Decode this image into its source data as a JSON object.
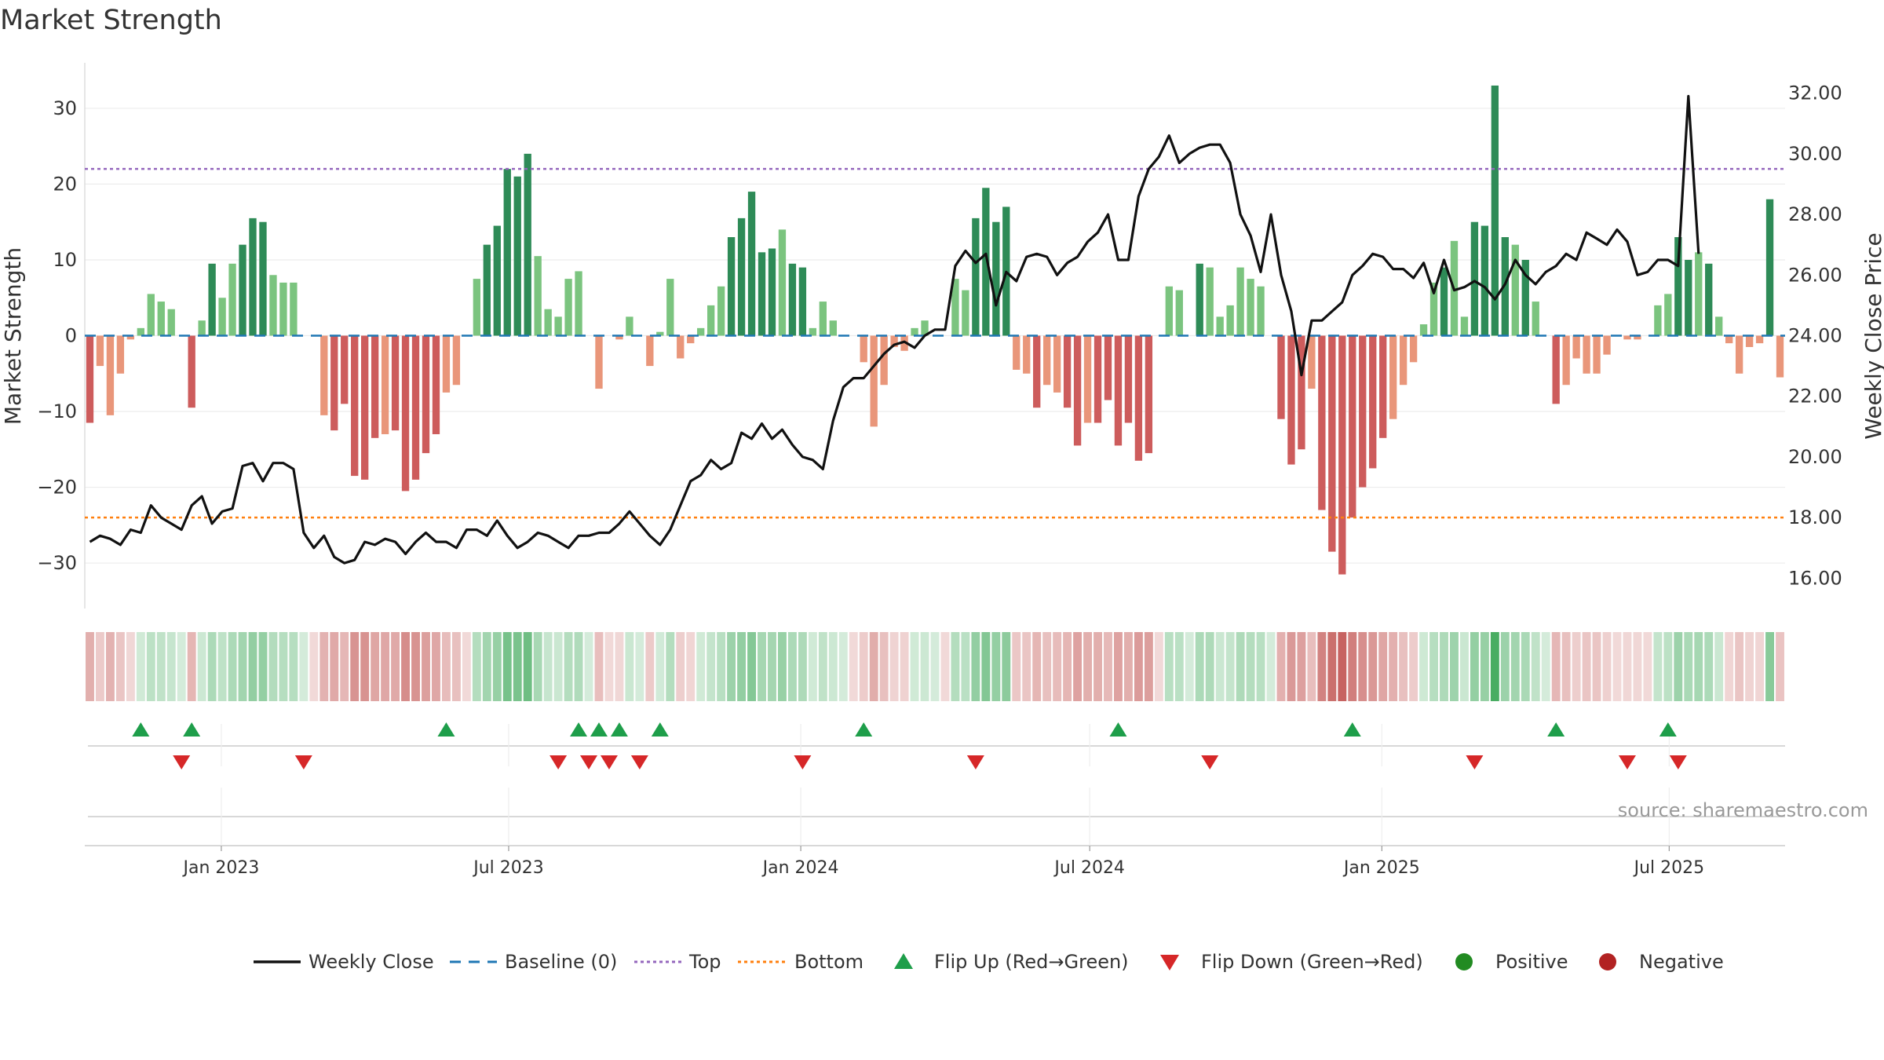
{
  "chart_data": {
    "type": "bar",
    "title": "Market Strength",
    "ylabel": "Market Strength",
    "y2label": "Weekly Close Price",
    "ylim": [
      -36,
      36
    ],
    "y2lim": [
      15.0,
      33.0
    ],
    "yticks": [
      30,
      20,
      10,
      0,
      -10,
      -20,
      -30
    ],
    "ytick_labels": [
      "30",
      "20",
      "10",
      "0",
      "−10",
      "−20",
      "−30"
    ],
    "y2ticks": [
      32,
      30,
      28,
      26,
      24,
      22,
      20,
      18,
      16
    ],
    "y2tick_labels": [
      "32.00",
      "30.00",
      "28.00",
      "26.00",
      "24.00",
      "22.00",
      "20.00",
      "18.00",
      "16.00"
    ],
    "x_range": [
      "2022-10-07",
      "2025-09-12"
    ],
    "xticks": [
      "2023-01-01",
      "2023-07-01",
      "2024-01-01",
      "2024-07-01",
      "2025-01-01",
      "2025-07-01"
    ],
    "xtick_labels": [
      "Jan 2023",
      "Jul 2023",
      "Jan 2024",
      "Jul 2024",
      "Jan 2025",
      "Jul 2025"
    ],
    "top_line": 22,
    "bottom_line": -24,
    "grid": true,
    "legend_position": "bottom",
    "source": "source: sharemaestro.com",
    "colors": {
      "positive": "#2e8b57",
      "positive_light": "#7bc47f",
      "negative": "#cd5c5c",
      "negative_light": "#e9967a",
      "close_line": "#111111",
      "baseline": "#1f77b4",
      "top": "#9467bd",
      "bottom": "#ff7f0e",
      "flip_up": "#1e9e4a",
      "flip_down": "#d62728",
      "legend_positive": "#228b22",
      "legend_negative": "#b22222"
    },
    "strength": [
      -11.5,
      -4.0,
      -10.5,
      -5.0,
      -0.5,
      1.0,
      5.5,
      4.5,
      3.5,
      0,
      -9.5,
      2.0,
      9.5,
      5.0,
      9.5,
      12.0,
      15.5,
      15.0,
      8.0,
      7.0,
      7.0,
      0,
      0,
      -10.5,
      -12.5,
      -9.0,
      -18.5,
      -19.0,
      -13.5,
      -13.0,
      -12.5,
      -20.5,
      -19.0,
      -15.5,
      -13.0,
      -7.5,
      -6.5,
      0,
      7.5,
      12.0,
      14.5,
      22.0,
      21.0,
      24.0,
      10.5,
      3.5,
      2.5,
      7.5,
      8.5,
      0,
      -7.0,
      0,
      -0.5,
      2.5,
      0,
      -4.0,
      0.5,
      7.5,
      -3.0,
      -1.0,
      1.0,
      4.0,
      6.5,
      13.0,
      15.5,
      19.0,
      11.0,
      11.5,
      14.0,
      9.5,
      9.0,
      1.0,
      4.5,
      2.0,
      0,
      0,
      -3.5,
      -12.0,
      -6.5,
      -1.5,
      -2.0,
      1.0,
      2.0,
      0,
      0,
      7.5,
      6.0,
      15.5,
      19.5,
      15.0,
      17.0,
      -4.5,
      -5.0,
      -9.5,
      -6.5,
      -7.5,
      -9.5,
      -14.5,
      -11.5,
      -11.5,
      -8.5,
      -14.5,
      -11.5,
      -16.5,
      -15.5,
      0,
      6.5,
      6.0,
      0,
      9.5,
      9.0,
      2.5,
      4.0,
      9.0,
      7.5,
      6.5,
      0,
      -11.0,
      -17.0,
      -15.0,
      -7.0,
      -23.0,
      -28.5,
      -31.5,
      -24.0,
      -20.0,
      -17.5,
      -13.5,
      -11.0,
      -6.5,
      -3.5,
      1.5,
      7.0,
      9.0,
      12.5,
      2.5,
      15.0,
      14.5,
      33.0,
      13.0,
      12.0,
      10.0,
      4.5,
      0,
      -9.0,
      -6.5,
      -3.0,
      -5.0,
      -5.0,
      -2.5,
      0,
      -0.5,
      -0.5,
      0,
      4.0,
      5.5,
      13.0,
      10.0,
      11.0,
      9.5,
      2.5,
      -1.0,
      -5.0,
      -1.5,
      -1.0,
      18.0,
      -5.5
    ],
    "close": [
      17.2,
      17.4,
      17.3,
      17.1,
      17.6,
      17.5,
      18.4,
      18.0,
      17.8,
      17.6,
      18.4,
      18.7,
      17.8,
      18.2,
      18.3,
      19.7,
      19.8,
      19.2,
      19.8,
      19.8,
      19.6,
      17.5,
      17.0,
      17.4,
      16.7,
      16.5,
      16.6,
      17.2,
      17.1,
      17.3,
      17.2,
      16.8,
      17.2,
      17.5,
      17.2,
      17.2,
      17.0,
      17.6,
      17.6,
      17.4,
      17.9,
      17.4,
      17.0,
      17.2,
      17.5,
      17.4,
      17.2,
      17.0,
      17.4,
      17.4,
      17.5,
      17.5,
      17.8,
      18.2,
      17.8,
      17.4,
      17.1,
      17.6,
      18.4,
      19.2,
      19.4,
      19.9,
      19.6,
      19.8,
      20.8,
      20.6,
      21.1,
      20.6,
      20.9,
      20.4,
      20.0,
      19.9,
      19.6,
      21.2,
      22.3,
      22.6,
      22.6,
      23.0,
      23.4,
      23.7,
      23.8,
      23.6,
      24.0,
      24.2,
      24.2,
      26.3,
      26.8,
      26.4,
      26.7,
      25.0,
      26.1,
      25.8,
      26.6,
      26.7,
      26.6,
      26.0,
      26.4,
      26.6,
      27.1,
      27.4,
      28.0,
      26.5,
      26.5,
      28.6,
      29.5,
      29.9,
      30.6,
      29.7,
      30.0,
      30.2,
      30.3,
      30.3,
      29.7,
      28.0,
      27.3,
      26.1,
      28.0,
      26.0,
      24.8,
      22.7,
      24.5,
      24.5,
      24.8,
      25.1,
      26.0,
      26.3,
      26.7,
      26.6,
      26.2,
      26.2,
      25.9,
      26.4,
      25.4,
      26.5,
      25.5,
      25.6,
      25.8,
      25.6,
      25.2,
      25.7,
      26.5,
      26.0,
      25.7,
      26.1,
      26.3,
      26.7,
      26.5,
      27.4,
      27.2,
      27.0,
      27.5,
      27.1,
      26.0,
      26.1,
      26.5,
      26.5,
      26.3,
      31.9,
      26.7
    ],
    "strip_shades": [
      0.2,
      0.28,
      0.36,
      0.42,
      0.5,
      0.55,
      0.6
    ],
    "flip_up_weeks": [
      5,
      10,
      35,
      48,
      50,
      52,
      56,
      76,
      101,
      124,
      144,
      155
    ],
    "flip_down_weeks": [
      9,
      21,
      46,
      49,
      51,
      54,
      70,
      87,
      110,
      136,
      151,
      156
    ],
    "legend": [
      "Weekly Close",
      "Baseline (0)",
      "Top",
      "Bottom",
      "Flip Up (Red→Green)",
      "Flip Down (Green→Red)",
      "Positive",
      "Negative"
    ]
  }
}
